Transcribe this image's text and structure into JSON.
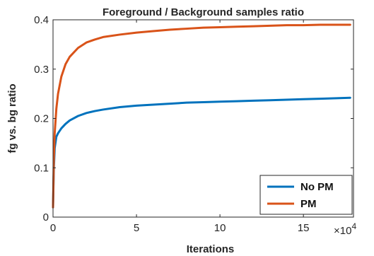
{
  "chart_data": {
    "type": "line",
    "title": "Foreground / Background samples ratio",
    "xlabel": "Iterations",
    "ylabel": "fg vs. bg ratio",
    "xlim": [
      0,
      180000
    ],
    "ylim": [
      0,
      0.4
    ],
    "x_ticks": [
      0,
      5,
      10,
      15
    ],
    "x_tick_labels": [
      "0",
      "5",
      "10",
      "15"
    ],
    "x_exponent_label": "×10",
    "x_exponent_power": "4",
    "y_ticks": [
      0,
      0.1,
      0.2,
      0.3,
      0.4
    ],
    "y_tick_labels": [
      "0",
      "0.1",
      "0.2",
      "0.3",
      "0.4"
    ],
    "grid": false,
    "legend_position": "bottom-right",
    "series": [
      {
        "name": "No PM",
        "color": "#0072BD",
        "x": [
          0,
          500,
          1000,
          2000,
          3000,
          5000,
          7500,
          10000,
          15000,
          20000,
          25000,
          30000,
          40000,
          50000,
          60000,
          70000,
          80000,
          90000,
          100000,
          110000,
          120000,
          130000,
          140000,
          150000,
          160000,
          170000,
          178000
        ],
        "y": [
          0.02,
          0.1,
          0.14,
          0.163,
          0.17,
          0.18,
          0.189,
          0.196,
          0.205,
          0.211,
          0.215,
          0.218,
          0.223,
          0.226,
          0.228,
          0.23,
          0.232,
          0.233,
          0.234,
          0.235,
          0.236,
          0.237,
          0.238,
          0.239,
          0.24,
          0.241,
          0.242
        ]
      },
      {
        "name": "PM",
        "color": "#D95319",
        "x": [
          0,
          500,
          1000,
          2000,
          3000,
          5000,
          7500,
          10000,
          15000,
          20000,
          25000,
          30000,
          40000,
          50000,
          60000,
          70000,
          80000,
          90000,
          100000,
          110000,
          120000,
          130000,
          140000,
          150000,
          160000,
          170000,
          178000
        ],
        "y": [
          0.02,
          0.12,
          0.17,
          0.22,
          0.25,
          0.285,
          0.31,
          0.325,
          0.343,
          0.354,
          0.36,
          0.365,
          0.37,
          0.374,
          0.377,
          0.38,
          0.382,
          0.384,
          0.385,
          0.386,
          0.387,
          0.388,
          0.389,
          0.389,
          0.39,
          0.39,
          0.39
        ]
      }
    ]
  }
}
